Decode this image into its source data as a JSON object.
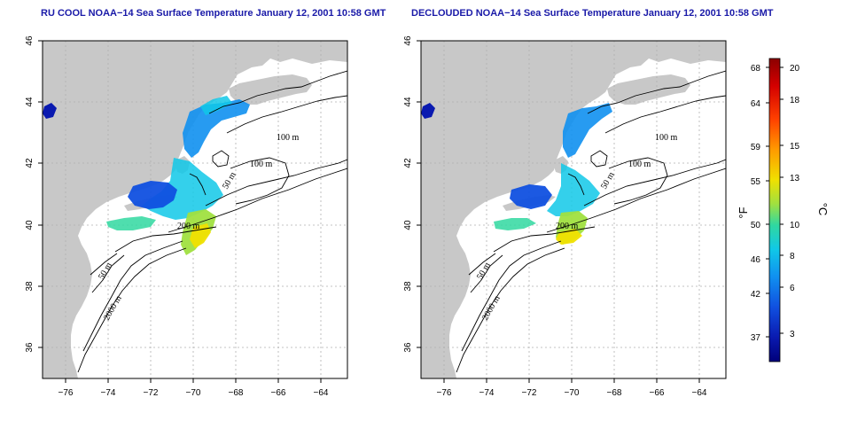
{
  "left_panel": {
    "title": "RU COOL NOAA−14 Sea Surface Temperature January 12, 2001 10:58 GMT",
    "contour_labels": [
      "100 m",
      "100 m",
      "50 m",
      "200 m",
      "50 m",
      "2000 m"
    ]
  },
  "right_panel": {
    "title": "DECLOUDED NOAA−14 Sea Surface Temperature January 12, 2001 10:58 GMT",
    "contour_labels": [
      "100 m",
      "100 m",
      "50 m",
      "200 m",
      "50 m",
      "2000 m"
    ]
  },
  "axes": {
    "x_ticks": [
      "−76",
      "−74",
      "−72",
      "−70",
      "−68",
      "−66",
      "−64"
    ],
    "x_values": [
      -76,
      -74,
      -72,
      -70,
      -68,
      -66,
      -64
    ],
    "y_ticks": [
      "46",
      "44",
      "42",
      "40",
      "38",
      "36"
    ],
    "y_values": [
      46,
      44,
      42,
      40,
      38,
      36
    ],
    "lon_range": [
      -77,
      -63
    ],
    "lat_range": [
      35,
      46
    ]
  },
  "colorbar": {
    "fahrenheit_unit": "°F",
    "celsius_unit": "°C",
    "fahrenheit_labels": [
      "68",
      "64",
      "59",
      "55",
      "50",
      "46",
      "42",
      "37"
    ],
    "celsius_labels": [
      "20",
      "18",
      "15",
      "13",
      "10",
      "8",
      "6",
      "3"
    ],
    "colors": [
      "#8b0000",
      "#d40000",
      "#ff4000",
      "#ff9a00",
      "#f0e000",
      "#a0e040",
      "#30d8a0",
      "#10c8e8",
      "#1090f0",
      "#1050e0",
      "#0a1ab0",
      "#00007a"
    ]
  },
  "map_colors": {
    "land": "#c8c8c8",
    "ocean": "#ffffff",
    "contour": "#000000",
    "grid": "#b0b0b0"
  }
}
